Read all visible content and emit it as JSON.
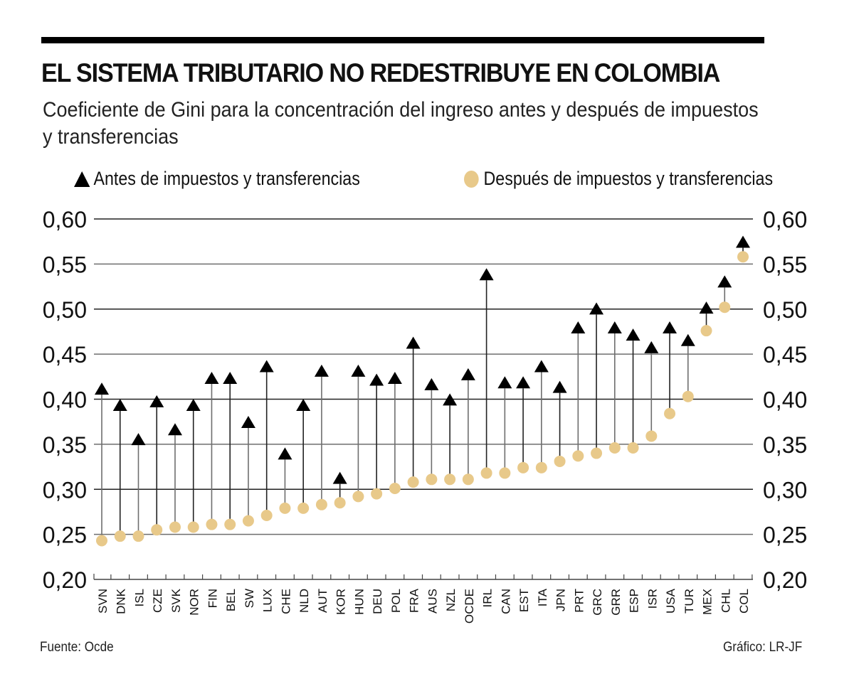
{
  "header": {
    "title": "EL SISTEMA TRIBUTARIO NO REDESTRIBUYE EN COLOMBIA",
    "subtitle": "Coeficiente de Gini para la concentración del ingreso antes y después de impuestos y transferencias"
  },
  "colors": {
    "before": "#000000",
    "after": "#e8c98a",
    "stem": "#6e6e6e",
    "grid": "#6e6e6e"
  },
  "footer": {
    "source": "Fuente: Ocde",
    "credit": "Gráfico: LR-JF"
  },
  "chart_data": {
    "type": "scatter",
    "title": "EL SISTEMA TRIBUTARIO NO REDESTRIBUYE EN COLOMBIA",
    "subtitle": "Coeficiente de Gini para la concentración del ingreso antes y después de impuestos y transferencias",
    "xlabel": "",
    "ylabel": "",
    "ylim": [
      0.2,
      0.6
    ],
    "yticks": [
      "0,20",
      "0,25",
      "0,30",
      "0,35",
      "0,40",
      "0,45",
      "0,50",
      "0,55",
      "0,60"
    ],
    "ytick_values": [
      0.2,
      0.25,
      0.3,
      0.35,
      0.4,
      0.45,
      0.5,
      0.55,
      0.6
    ],
    "y_axis": "both-sides",
    "grid": true,
    "legend_position": "top",
    "categories": [
      "SVN",
      "DNK",
      "ISL",
      "CZE",
      "SVK",
      "NOR",
      "FIN",
      "BEL",
      "SW",
      "LUX",
      "CHE",
      "NLD",
      "AUT",
      "KOR",
      "HUN",
      "DEU",
      "POL",
      "FRA",
      "AUS",
      "NZL",
      "OCDE",
      "IRL",
      "CAN",
      "EST",
      "ITA",
      "JPN",
      "PRT",
      "GRC",
      "GRR",
      "ESP",
      "ISR",
      "USA",
      "TUR",
      "MEX",
      "CHL",
      "COL"
    ],
    "series": [
      {
        "name": "Antes de impuestos y transferencias",
        "marker": "triangle",
        "values": [
          0.405,
          0.387,
          0.349,
          0.391,
          0.36,
          0.387,
          0.417,
          0.417,
          0.368,
          0.43,
          0.333,
          0.387,
          0.425,
          0.306,
          0.425,
          0.415,
          0.417,
          0.456,
          0.41,
          0.393,
          0.421,
          0.532,
          0.412,
          0.412,
          0.43,
          0.407,
          0.473,
          0.494,
          0.473,
          0.465,
          0.451,
          0.473,
          0.459,
          0.495,
          0.524,
          0.568
        ]
      },
      {
        "name": "Después de impuestos y transferencias",
        "marker": "circle",
        "values": [
          0.243,
          0.248,
          0.248,
          0.255,
          0.258,
          0.258,
          0.261,
          0.261,
          0.265,
          0.271,
          0.279,
          0.279,
          0.283,
          0.285,
          0.292,
          0.295,
          0.301,
          0.308,
          0.311,
          0.311,
          0.311,
          0.318,
          0.318,
          0.324,
          0.324,
          0.331,
          0.337,
          0.34,
          0.346,
          0.346,
          0.359,
          0.384,
          0.403,
          0.476,
          0.502,
          0.558
        ]
      }
    ]
  }
}
